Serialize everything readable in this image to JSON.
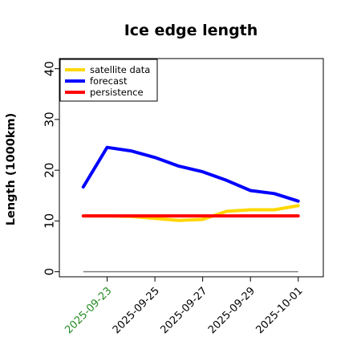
{
  "chart_data": {
    "type": "line",
    "title": "Ice edge length",
    "xlabel": "",
    "ylabel": "Length (1000km)",
    "x": [
      "2025-09-22",
      "2025-09-23",
      "2025-09-24",
      "2025-09-25",
      "2025-09-26",
      "2025-09-27",
      "2025-09-28",
      "2025-09-29",
      "2025-09-30",
      "2025-10-01",
      "2025-10-02"
    ],
    "xticks": [
      "2025-09-23",
      "2025-09-25",
      "2025-09-27",
      "2025-09-29",
      "2025-10-01"
    ],
    "xtick_colors": [
      "#228b22",
      "#000000",
      "#000000",
      "#000000",
      "#000000"
    ],
    "ylim": [
      -1,
      42
    ],
    "yticks": [
      0,
      10,
      20,
      30,
      40
    ],
    "grid": false,
    "legend_position": "top-left",
    "baseline": {
      "y": 0,
      "color": "#808080"
    },
    "series": [
      {
        "name": "satellite data",
        "color": "#ffd700",
        "values": [
          11.0,
          11.0,
          10.9,
          10.5,
          10.1,
          10.3,
          11.9,
          12.2,
          12.2,
          13.0,
          null
        ]
      },
      {
        "name": "forecast",
        "color": "#0000ff",
        "values": [
          16.7,
          24.5,
          23.8,
          22.5,
          20.8,
          19.7,
          18.0,
          16.0,
          15.4,
          13.9,
          null
        ]
      },
      {
        "name": "persistence",
        "color": "#ff0000",
        "values": [
          11.0,
          11.0,
          11.0,
          11.0,
          11.0,
          11.0,
          11.0,
          11.0,
          11.0,
          11.0,
          null
        ]
      }
    ]
  }
}
